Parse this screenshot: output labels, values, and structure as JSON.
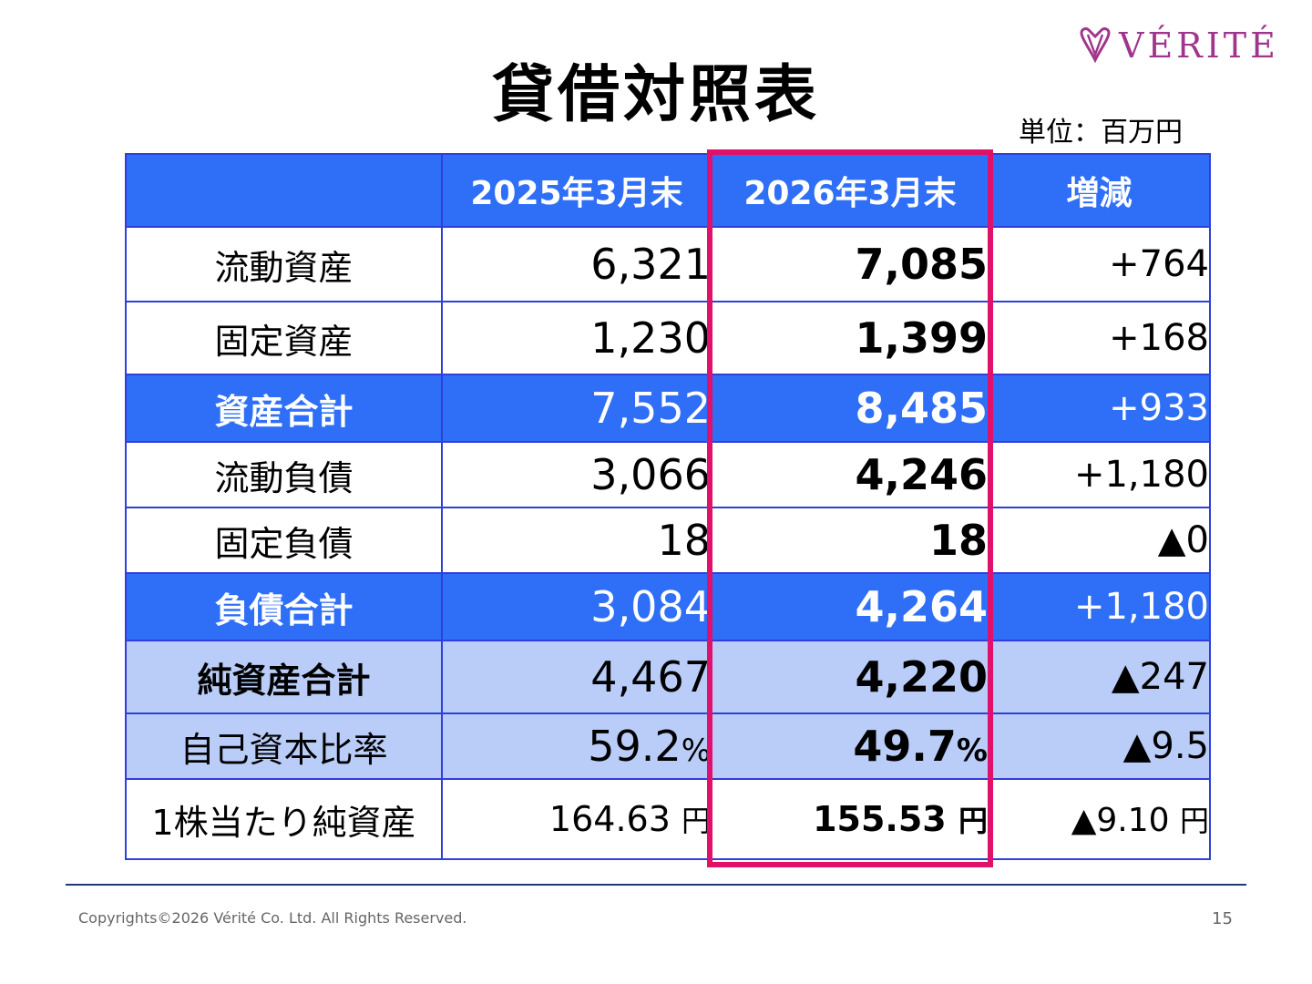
{
  "title": "貸借対照表",
  "logo": {
    "text": "VÉRITÉ",
    "mark_icon": "heart-v-icon",
    "color": "#a0358c"
  },
  "unit": "単位：百万円",
  "table": {
    "headers": [
      "",
      "2025年3月末",
      "2026年3月末",
      "増減"
    ],
    "rows": [
      {
        "label": "流動資産",
        "prev": "6,321",
        "curr": "7,085",
        "change": "+764",
        "style": "white"
      },
      {
        "label": "固定資産",
        "prev": "1,230",
        "curr": "1,399",
        "change": "+168",
        "style": "white"
      },
      {
        "label": "資産合計",
        "prev": "7,552",
        "curr": "8,485",
        "change": "+933",
        "style": "blue"
      },
      {
        "label": "流動負債",
        "prev": "3,066",
        "curr": "4,246",
        "change": "+1,180",
        "style": "white"
      },
      {
        "label": "固定負債",
        "prev": "18",
        "curr": "18",
        "change": "▲0",
        "style": "white"
      },
      {
        "label": "負債合計",
        "prev": "3,084",
        "curr": "4,264",
        "change": "+1,180",
        "style": "blue"
      },
      {
        "label": "純資産合計",
        "prev": "4,467",
        "curr": "4,220",
        "change": "▲247",
        "style": "light"
      },
      {
        "label": "自己資本比率",
        "prev": "59.2",
        "prev_unit": "%",
        "curr": "49.7",
        "curr_unit": "%",
        "change": "▲9.5",
        "style": "light"
      },
      {
        "label": "1株当たり純資産",
        "prev": "164.63",
        "prev_unit": "円",
        "curr": "155.53",
        "curr_unit": "円",
        "change": "▲9.10",
        "change_unit": "円",
        "style": "white"
      }
    ]
  },
  "colors": {
    "header_blue": "#2f6ff7",
    "light_blue": "#b9cdf8",
    "highlight": "#e0116a",
    "border": "#2f3fd8"
  },
  "footer": {
    "copyright": "Copyrights©2026  Vérité Co. Ltd. All Rights Reserved.",
    "page_number": "15"
  }
}
